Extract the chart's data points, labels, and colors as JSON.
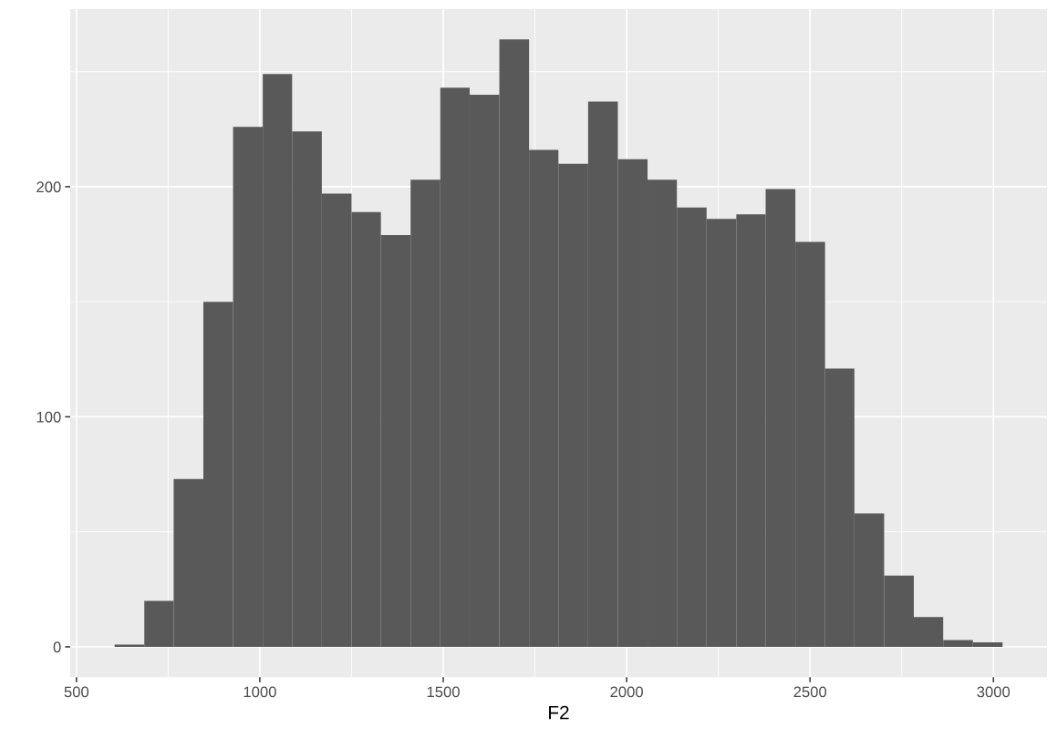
{
  "chart_data": {
    "type": "histogram",
    "xlabel": "F2",
    "bins": [
      604,
      685,
      765,
      846,
      927,
      1008,
      1088,
      1169,
      1250,
      1330,
      1411,
      1492,
      1572,
      1653,
      1734,
      1814,
      1895,
      1976,
      2057,
      2137,
      2218,
      2299,
      2379,
      2460,
      2541,
      2621,
      2702,
      2783,
      2863,
      2944,
      3025
    ],
    "values": [
      1,
      20,
      73,
      150,
      226,
      249,
      224,
      197,
      189,
      179,
      203,
      243,
      240,
      264,
      216,
      210,
      237,
      212,
      203,
      191,
      186,
      188,
      199,
      176,
      121,
      58,
      31,
      13,
      3,
      2
    ],
    "color": "#595959",
    "xlim": [
      483,
      3146
    ],
    "ylim": [
      -13.2,
      277.2
    ],
    "xticks": [
      500,
      1000,
      1500,
      2000,
      2500,
      3000
    ],
    "yticks": [
      0,
      100,
      200
    ],
    "grid": true
  }
}
